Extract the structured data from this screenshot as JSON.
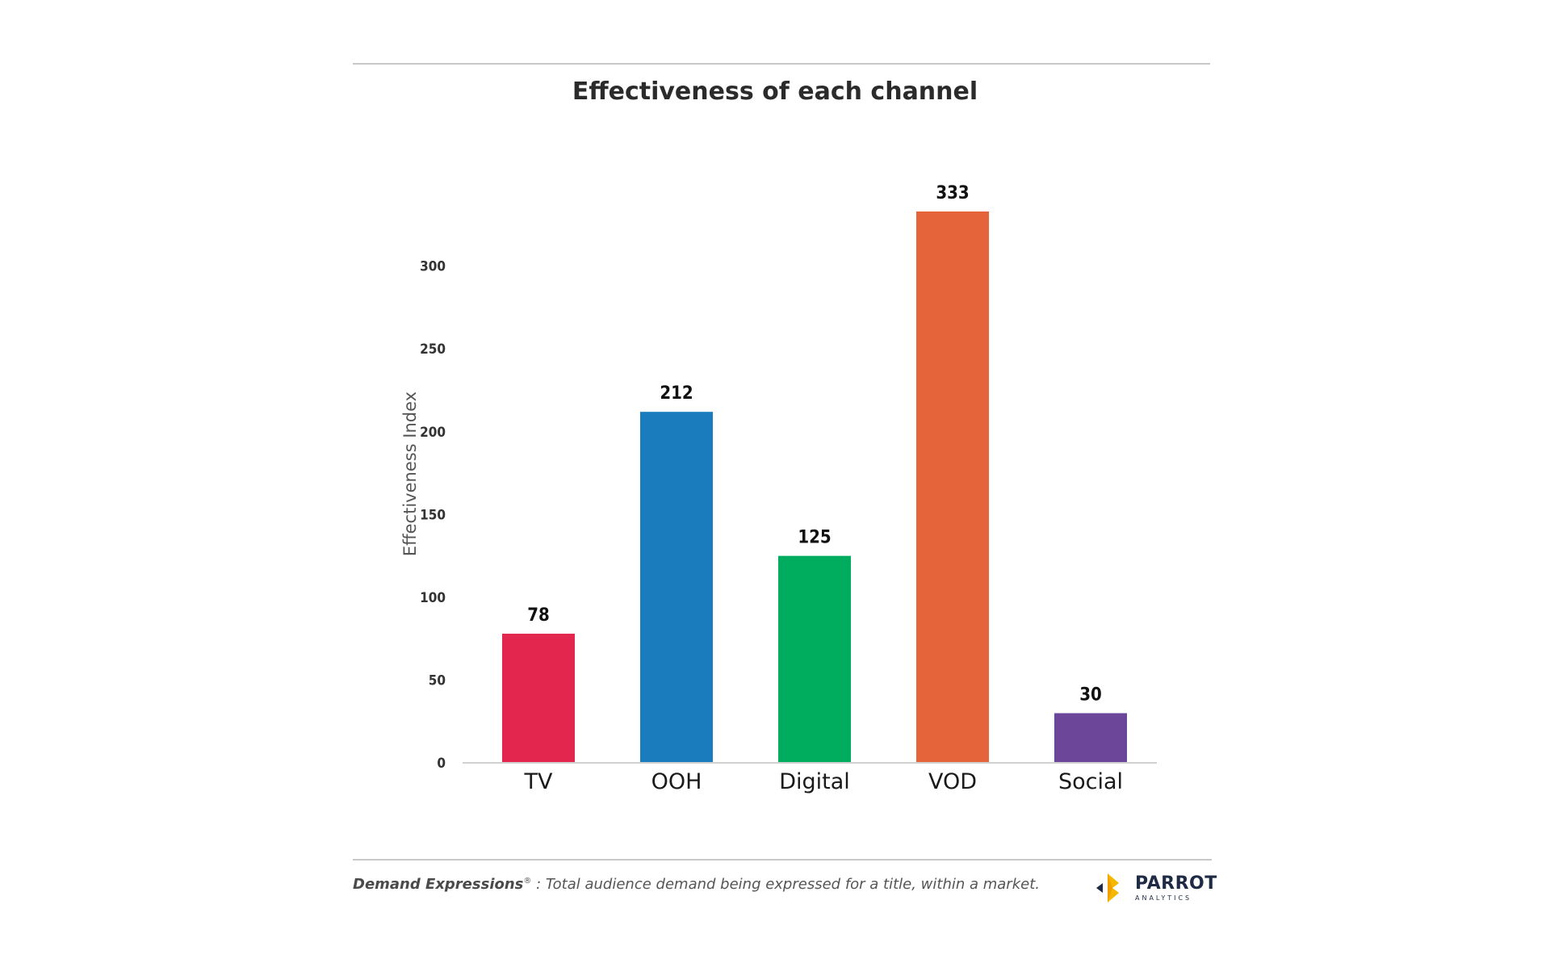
{
  "chart_data": {
    "type": "bar",
    "title": "Effectiveness of each channel",
    "ylabel": "Effectiveness Index",
    "xlabel": "",
    "categories": [
      "TV",
      "OOH",
      "Digital",
      "VOD",
      "Social"
    ],
    "values": [
      78,
      212,
      125,
      333,
      30
    ],
    "value_labels": [
      "78",
      "212",
      "125",
      "333",
      "30"
    ],
    "colors": [
      "#E3264D",
      "#1A7CBC",
      "#00AD5F",
      "#E5643A",
      "#6C4799"
    ],
    "yticks": [
      0,
      50,
      100,
      150,
      200,
      250,
      300
    ],
    "ytick_labels": [
      "0",
      "50",
      "100",
      "150",
      "200",
      "250",
      "300"
    ],
    "ylim": [
      0,
      333
    ],
    "grid": false,
    "legend": "none"
  },
  "footnote": {
    "term": "Demand Expressions",
    "mark": "®",
    "text": " : Total audience demand being expressed for a title, within a market."
  },
  "logo": {
    "name": "PARROT",
    "sub": "ANALYTICS"
  }
}
